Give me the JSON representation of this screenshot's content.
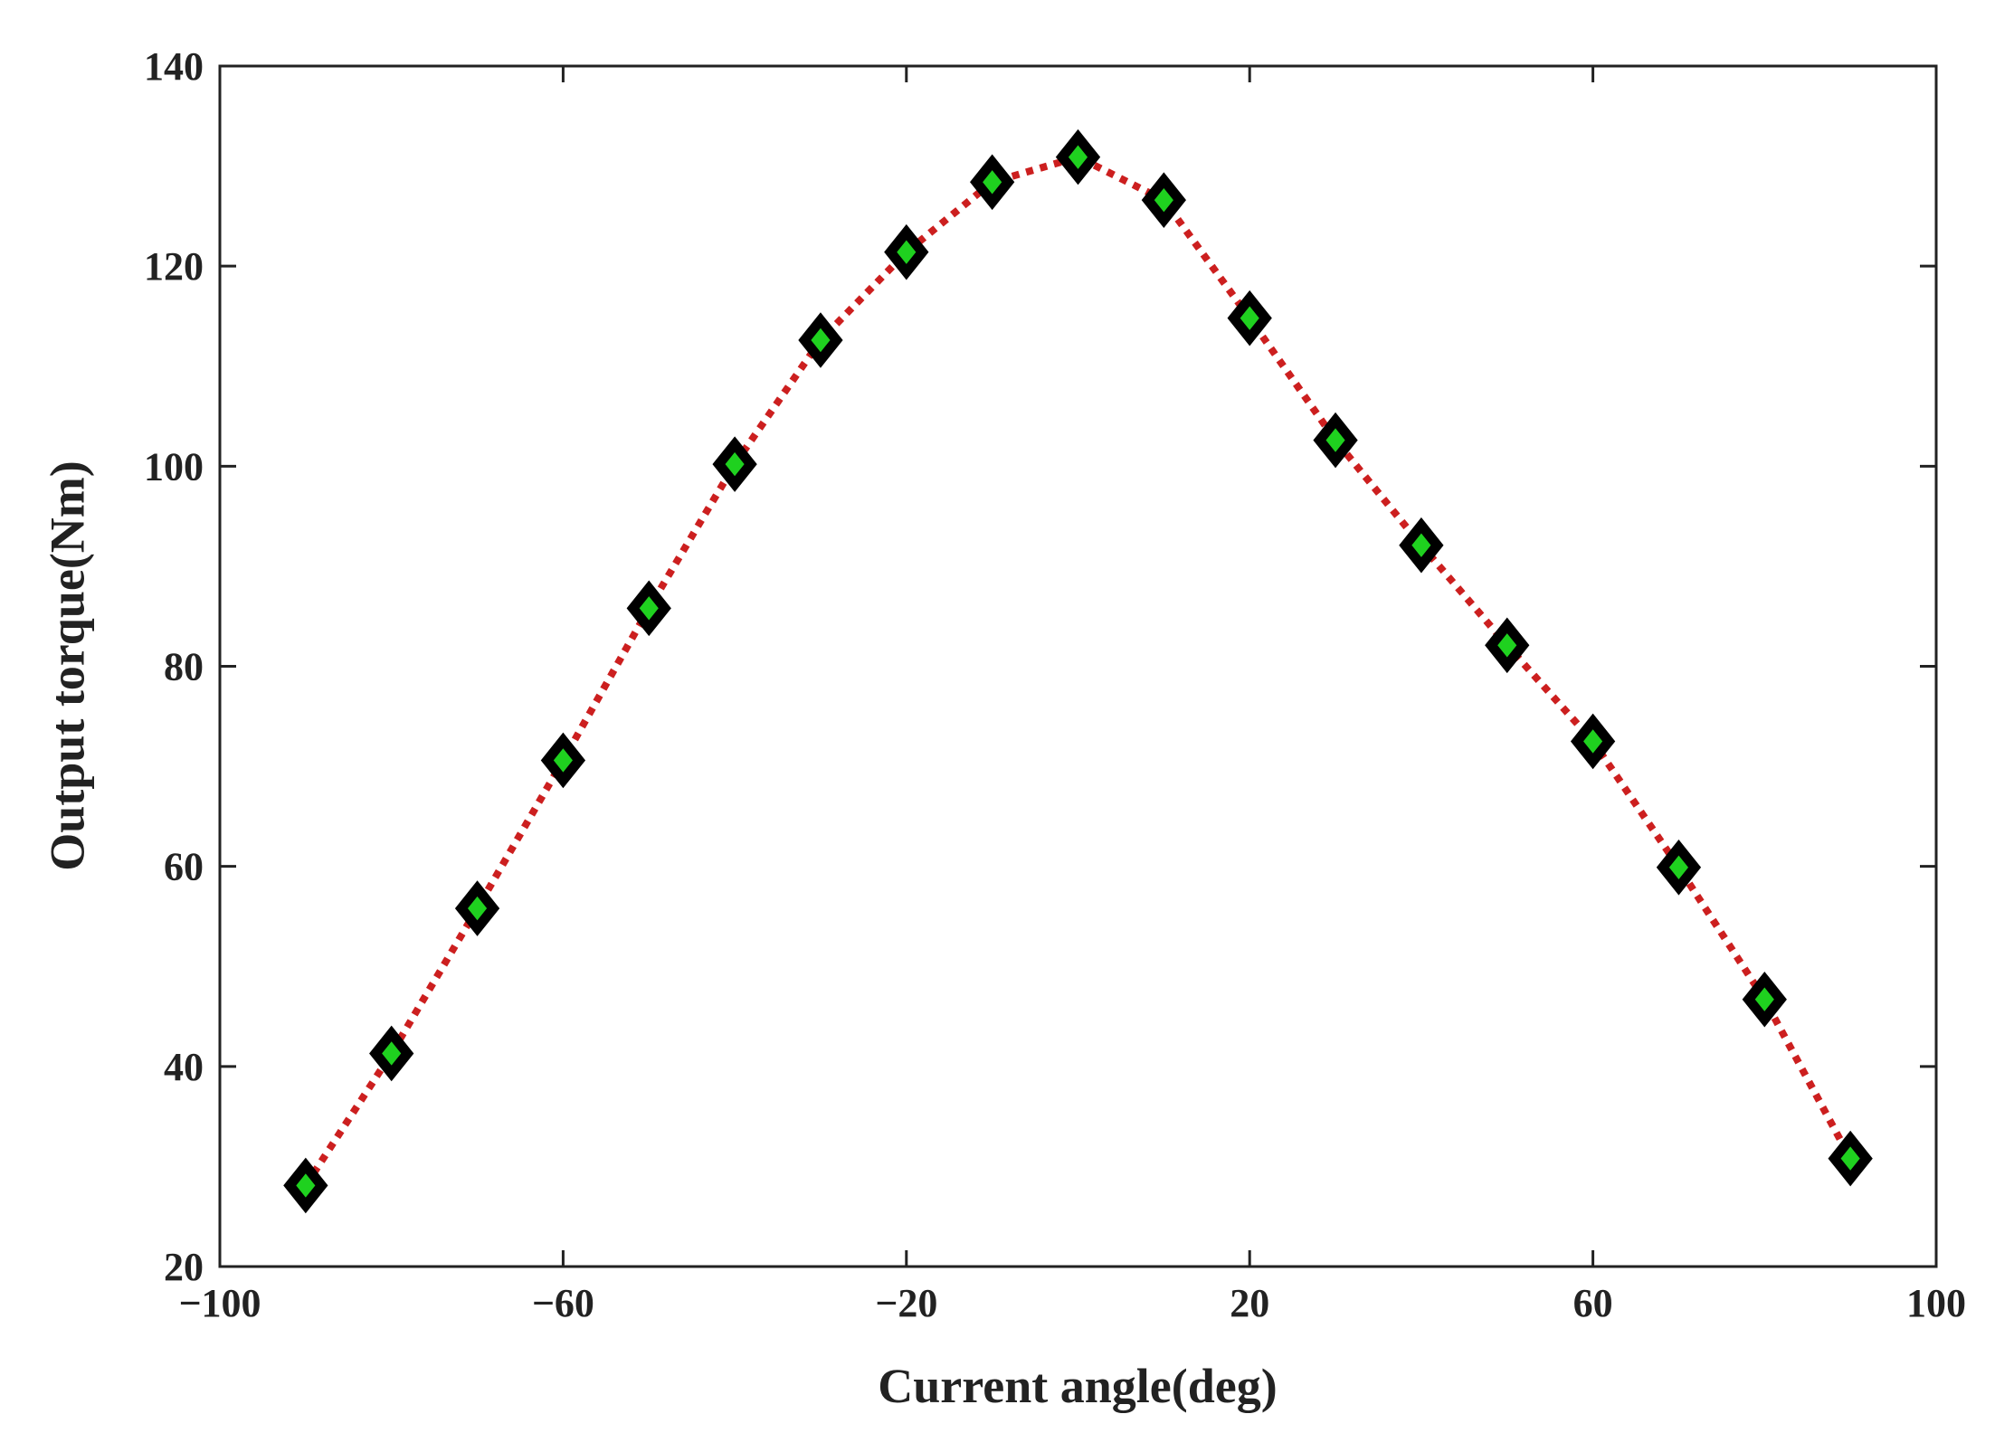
{
  "chart_data": {
    "type": "line",
    "xlabel": "Current angle(deg)",
    "ylabel": "Output torque(Nm)",
    "x": [
      -90,
      -80,
      -70,
      -60,
      -50,
      -40,
      -30,
      -20,
      -10,
      0,
      10,
      20,
      30,
      40,
      50,
      60,
      70,
      80,
      90
    ],
    "series": [
      {
        "color": "#cc1f1f",
        "marker_color": "#1fd11f",
        "marker_edge": "#000000",
        "values": [
          28.1,
          41.3,
          55.8,
          70.6,
          85.8,
          100.2,
          112.6,
          121.4,
          128.4,
          130.9,
          126.6,
          114.8,
          102.6,
          92.1,
          82.1,
          72.5,
          59.9,
          46.7,
          30.8
        ]
      }
    ],
    "xlim": [
      -100,
      100
    ],
    "xticks": [
      {
        "value": -100,
        "label": "−100"
      },
      {
        "value": -60,
        "label": "−60"
      },
      {
        "value": -20,
        "label": "−20"
      },
      20,
      60,
      100
    ],
    "ylim": [
      20,
      140
    ],
    "yticks": [
      20,
      40,
      60,
      80,
      100,
      120,
      140
    ]
  }
}
